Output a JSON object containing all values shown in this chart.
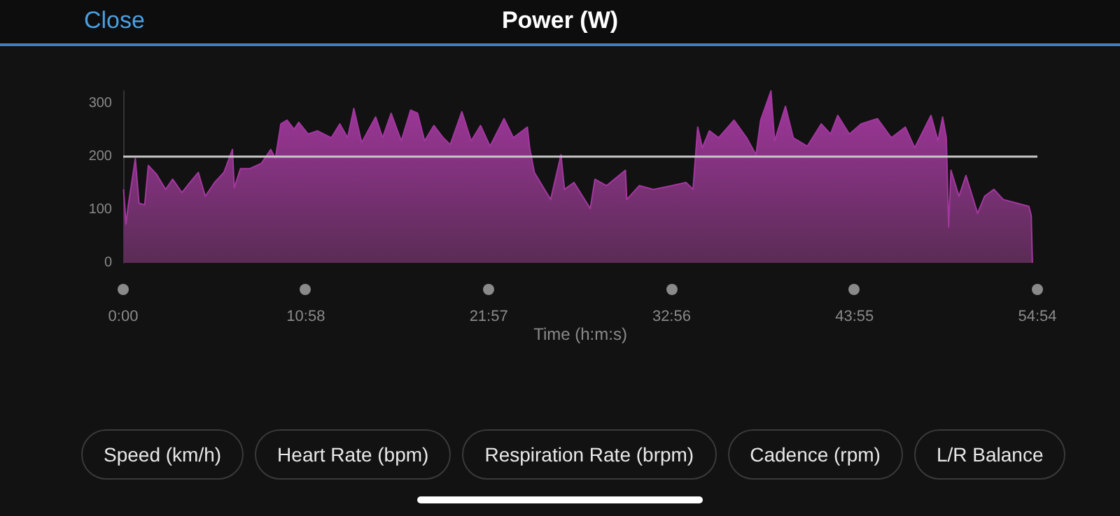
{
  "chart_data": {
    "type": "area",
    "title": "Power (W)",
    "xlabel": "Time (h:m:s)",
    "annotations": [
      "Close",
      "Speed (km/h)",
      "Heart Rate (bpm)",
      "Respiration Rate (brpm)",
      "Cadence (rpm)",
      "L/R Balance"
    ],
    "x": [
      0.02,
      0.17,
      0.31,
      0.73,
      0.95,
      1.29,
      1.51,
      1.99,
      2.55,
      2.97,
      3.53,
      4.09,
      4.51,
      4.93,
      5.49,
      6.05,
      6.56,
      6.67,
      7.04,
      7.6,
      8.3,
      8.86,
      9.14,
      9.47,
      9.84,
      10.26,
      10.54,
      11.1,
      11.66,
      12.5,
      13.01,
      13.48,
      13.85,
      14.32,
      15.16,
      15.58,
      16.09,
      16.7,
      17.26,
      17.68,
      18.1,
      18.66,
      19.22,
      19.64,
      20.34,
      20.9,
      21.46,
      22.03,
      22.87,
      23.43,
      24.27,
      24.41,
      24.69,
      25.11,
      25.67,
      26.29,
      26.5,
      27.07,
      28.05,
      28.33,
      29.03,
      30.16,
      30.24,
      30.99,
      31.84,
      32.96,
      33.8,
      34.22,
      34.5,
      34.78,
      35.2,
      35.76,
      36.68,
      37.44,
      38.0,
      38.28,
      38.9,
      39.12,
      39.77,
      40.24,
      41.08,
      41.92,
      42.48,
      42.91,
      43.61,
      44.31,
      45.29,
      46.13,
      46.97,
      47.53,
      48.51,
      48.93,
      49.21,
      49.43,
      49.57,
      49.71,
      50.19,
      50.61,
      51.31,
      51.73,
      52.29,
      52.85,
      53.69,
      54.39,
      54.53,
      54.6
    ],
    "series": [
      {
        "color": "#a3379f",
        "values": [
          138,
          73,
          109,
          196,
          112,
          109,
          183,
          167,
          138,
          157,
          132,
          154,
          170,
          125,
          151,
          170,
          213,
          141,
          177,
          177,
          187,
          213,
          196,
          261,
          268,
          251,
          264,
          242,
          248,
          235,
          261,
          235,
          290,
          226,
          274,
          235,
          281,
          229,
          287,
          281,
          229,
          258,
          235,
          222,
          284,
          229,
          258,
          219,
          271,
          235,
          255,
          216,
          170,
          148,
          119,
          203,
          138,
          151,
          102,
          157,
          145,
          174,
          119,
          145,
          138,
          145,
          151,
          138,
          255,
          216,
          248,
          235,
          268,
          235,
          203,
          268,
          323,
          229,
          294,
          235,
          219,
          261,
          242,
          277,
          242,
          261,
          271,
          235,
          255,
          216,
          277,
          229,
          274,
          235,
          67,
          174,
          125,
          164,
          93,
          125,
          138,
          119,
          112,
          106,
          89,
          0
        ]
      }
    ],
    "xlim": [
      0,
      54.9
    ],
    "xticks": [
      {
        "value": 0,
        "label": "0:00"
      },
      {
        "value": 10.967,
        "label": "10:58"
      },
      {
        "value": 21.95,
        "label": "21:57"
      },
      {
        "value": 32.933,
        "label": "32:56"
      },
      {
        "value": 43.917,
        "label": "43:55"
      },
      {
        "value": 54.9,
        "label": "54:54"
      }
    ],
    "ylim": [
      0,
      323
    ],
    "yticks": [
      0,
      100,
      200,
      300
    ],
    "ref_lines": [
      {
        "axis": "y",
        "value": 200,
        "color": "#c8c8c8"
      }
    ],
    "grid": false,
    "marker": "none"
  }
}
